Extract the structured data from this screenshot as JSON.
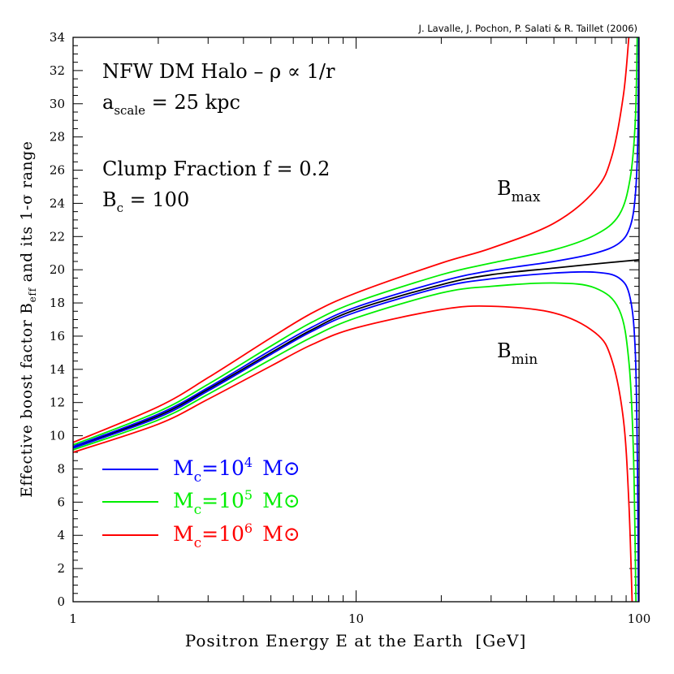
{
  "chart_data": {
    "type": "line",
    "credit": "J. Lavalle, J. Pochon, P. Salati & R. Taillet (2006)",
    "xlabel": "Positron Energy E at the Earth  [GeV]",
    "ylabel": {
      "main": "Effective boost factor B",
      "sub": "eff",
      "rest": " and its 1-σ range"
    },
    "x_scale": "log",
    "xlim": [
      1,
      100
    ],
    "ylim": [
      0,
      34
    ],
    "x_tick_labels": [
      "1",
      "10",
      "100"
    ],
    "y_tick_labels": [
      "0",
      "2",
      "4",
      "6",
      "8",
      "10",
      "12",
      "14",
      "16",
      "18",
      "20",
      "22",
      "24",
      "26",
      "28",
      "30",
      "32",
      "34"
    ],
    "grid": false,
    "annotations": {
      "line1": "NFW DM Halo – ρ ∝ 1/r",
      "line2": {
        "base": "a",
        "sub": "scale",
        "rest": " = 25 kpc"
      },
      "line3": "Clump Fraction f = 0.2",
      "line4": {
        "base": "B",
        "sub": "c",
        "rest": " = 100"
      },
      "bmax": {
        "base": "B",
        "sub": "max"
      },
      "bmin": {
        "base": "B",
        "sub": "min"
      }
    },
    "legend_position": "bottom-left",
    "legend": [
      {
        "mass_symbol": "M",
        "subscript": "c",
        "mantissa": "=10",
        "exponent": "4",
        "unit": "M⊙",
        "color": "#0000ff"
      },
      {
        "mass_symbol": "M",
        "subscript": "c",
        "mantissa": "=10",
        "exponent": "5",
        "unit": "M⊙",
        "color": "#00ee00"
      },
      {
        "mass_symbol": "M",
        "subscript": "c",
        "mantissa": "=10",
        "exponent": "6",
        "unit": "M⊙",
        "color": "#ff0000"
      }
    ],
    "series": [
      {
        "role": "mean",
        "color": "#000000",
        "x": [
          1,
          2,
          3,
          5,
          7,
          10,
          20,
          30,
          50,
          70,
          100
        ],
        "y": [
          9.3,
          11.2,
          12.8,
          15.0,
          16.4,
          17.6,
          19.1,
          19.7,
          20.1,
          20.35,
          20.6
        ]
      },
      {
        "role": "upper",
        "legend_index": 0,
        "color": "#0000ff",
        "x": [
          1,
          2,
          3,
          5,
          7,
          10,
          20,
          30,
          50,
          70,
          85,
          93,
          97,
          99,
          99.7
        ],
        "y": [
          9.35,
          11.3,
          12.9,
          15.15,
          16.55,
          17.75,
          19.3,
          19.95,
          20.5,
          21.0,
          21.6,
          22.6,
          24.5,
          28,
          34
        ]
      },
      {
        "role": "lower",
        "legend_index": 0,
        "color": "#0000ff",
        "x": [
          1,
          2,
          3,
          5,
          7,
          10,
          20,
          30,
          50,
          70,
          85,
          93,
          97,
          98.7,
          99.5
        ],
        "y": [
          9.25,
          11.1,
          12.7,
          14.9,
          16.3,
          17.45,
          18.95,
          19.45,
          19.8,
          19.85,
          19.5,
          18.3,
          15,
          8,
          0
        ]
      },
      {
        "role": "upper",
        "legend_index": 1,
        "color": "#00ee00",
        "x": [
          1,
          2,
          3,
          5,
          7,
          10,
          20,
          30,
          50,
          70,
          85,
          93,
          97,
          98.5
        ],
        "y": [
          9.45,
          11.45,
          13.1,
          15.4,
          16.85,
          18.05,
          19.7,
          20.4,
          21.2,
          22.1,
          23.3,
          25.5,
          29,
          34
        ]
      },
      {
        "role": "lower",
        "legend_index": 1,
        "color": "#00ee00",
        "x": [
          1,
          2,
          3,
          5,
          7,
          10,
          20,
          30,
          50,
          70,
          85,
          92,
          95.5,
          97.5
        ],
        "y": [
          9.15,
          10.95,
          12.5,
          14.6,
          15.95,
          17.1,
          18.6,
          19.0,
          19.2,
          18.9,
          17.6,
          14.5,
          9,
          0
        ]
      },
      {
        "role": "upper",
        "legend_index": 2,
        "color": "#ff0000",
        "x": [
          1,
          2,
          3,
          5,
          7,
          10,
          20,
          30,
          50,
          70,
          80,
          88,
          92
        ],
        "y": [
          9.6,
          11.75,
          13.5,
          15.9,
          17.4,
          18.6,
          20.4,
          21.3,
          22.8,
          24.8,
          26.8,
          30.5,
          34
        ]
      },
      {
        "role": "lower",
        "legend_index": 2,
        "color": "#ff0000",
        "x": [
          1,
          2,
          3,
          5,
          7,
          10,
          20,
          30,
          50,
          70,
          80,
          88,
          92,
          94.5
        ],
        "y": [
          9.0,
          10.7,
          12.2,
          14.2,
          15.5,
          16.5,
          17.6,
          17.8,
          17.4,
          16.2,
          14.6,
          11,
          6,
          0
        ]
      }
    ]
  }
}
